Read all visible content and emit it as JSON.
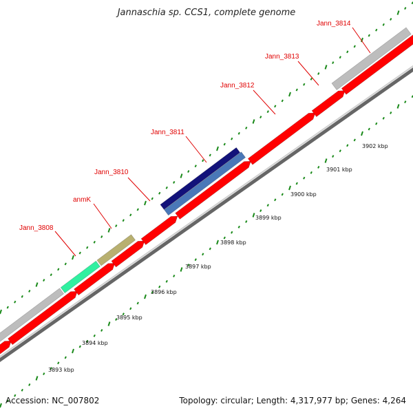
{
  "title": "Jannaschia sp. CCS1, complete genome",
  "footer": {
    "accession": "Accession: NC_007802",
    "summary": "Topology: circular; Length: 4,317,977 bp; Genes: 4,264"
  },
  "gene_labels": [
    {
      "name": "Jann_3808"
    },
    {
      "name": "anmK"
    },
    {
      "name": "Jann_3810"
    },
    {
      "name": "Jann_3811"
    },
    {
      "name": "Jann_3812"
    },
    {
      "name": "Jann_3813"
    },
    {
      "name": "Jann_3814"
    }
  ],
  "kbp_ticks": [
    "3893 kbp",
    "3894 kbp",
    "3895 kbp",
    "3896 kbp",
    "3897 kbp",
    "3898 kbp",
    "3899 kbp",
    "3900 kbp",
    "3901 kbp",
    "3902 kbp"
  ],
  "colors": {
    "cds": "#ff0000",
    "cds_dark": "#a00000",
    "backbone": "#888888",
    "tick": "#1a8a1a",
    "label": "#e00000",
    "grey_feature": "#bdbdbd",
    "navy_feature": "#12127a",
    "steel_feature": "#4a78b8",
    "green_feature": "#30f0a0",
    "khaki_feature": "#b8b070",
    "purple_feature": "#5a5aa0"
  }
}
